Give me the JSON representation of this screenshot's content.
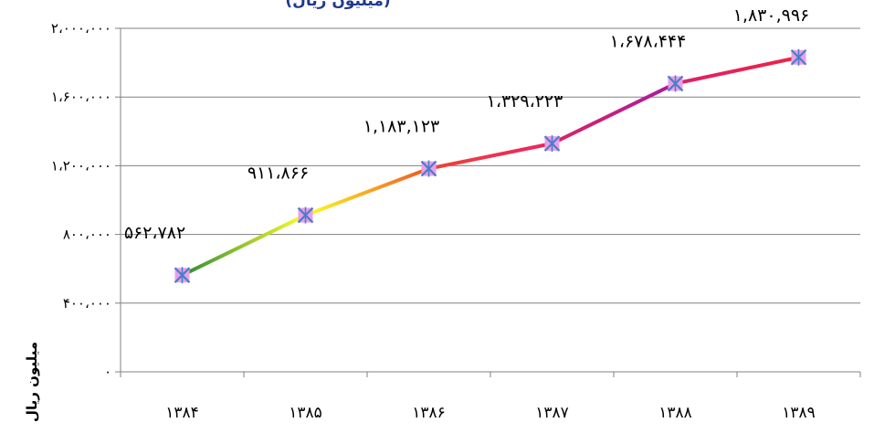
{
  "chart_data": {
    "type": "line",
    "title": "(میلیون ریال)",
    "ylabel": "میلیون ریال",
    "xlabel": "",
    "categories": [
      "۱۳۸۴",
      "۱۳۸۵",
      "۱۳۸۶",
      "۱۳۸۷",
      "۱۳۸۸",
      "۱۳۸۹"
    ],
    "values": [
      562782,
      911866,
      1183123,
      1329223,
      1678444,
      1830996
    ],
    "data_labels": [
      "۵۶۲،۷۸۲",
      "۹۱۱،۸۶۶",
      "۱,۱۸۳,۱۲۳",
      "۱،۳۲۹،۲۲۳",
      "۱،۶۷۸،۴۴۴",
      "۱,۸۳۰,۹۹۶"
    ],
    "yticks": [
      0,
      400000,
      800000,
      1200000,
      1600000,
      2000000
    ],
    "ytick_labels": [
      "۰",
      "۴۰۰،۰۰۰",
      "۸۰۰،۰۰۰",
      "۱،۲۰۰،۰۰۰",
      "۱،۶۰۰،۰۰۰",
      "۲،۰۰۰،۰۰۰"
    ],
    "ylim": [
      0,
      2000000
    ],
    "grid": true,
    "legend": "none",
    "colors": {
      "gridline": "#808080",
      "axis": "#808080",
      "marker_fill": "#e8a0e8",
      "marker_stroke": "#4a7ec8",
      "segment_colors": [
        [
          "#2e8b3a",
          "#ffff22"
        ],
        [
          "#ffff22",
          "#ee5522"
        ],
        [
          "#ee4433",
          "#ee2266"
        ],
        [
          "#dd2266",
          "#aa1aa0"
        ],
        [
          "#dd2266",
          "#ee2244"
        ]
      ]
    }
  }
}
